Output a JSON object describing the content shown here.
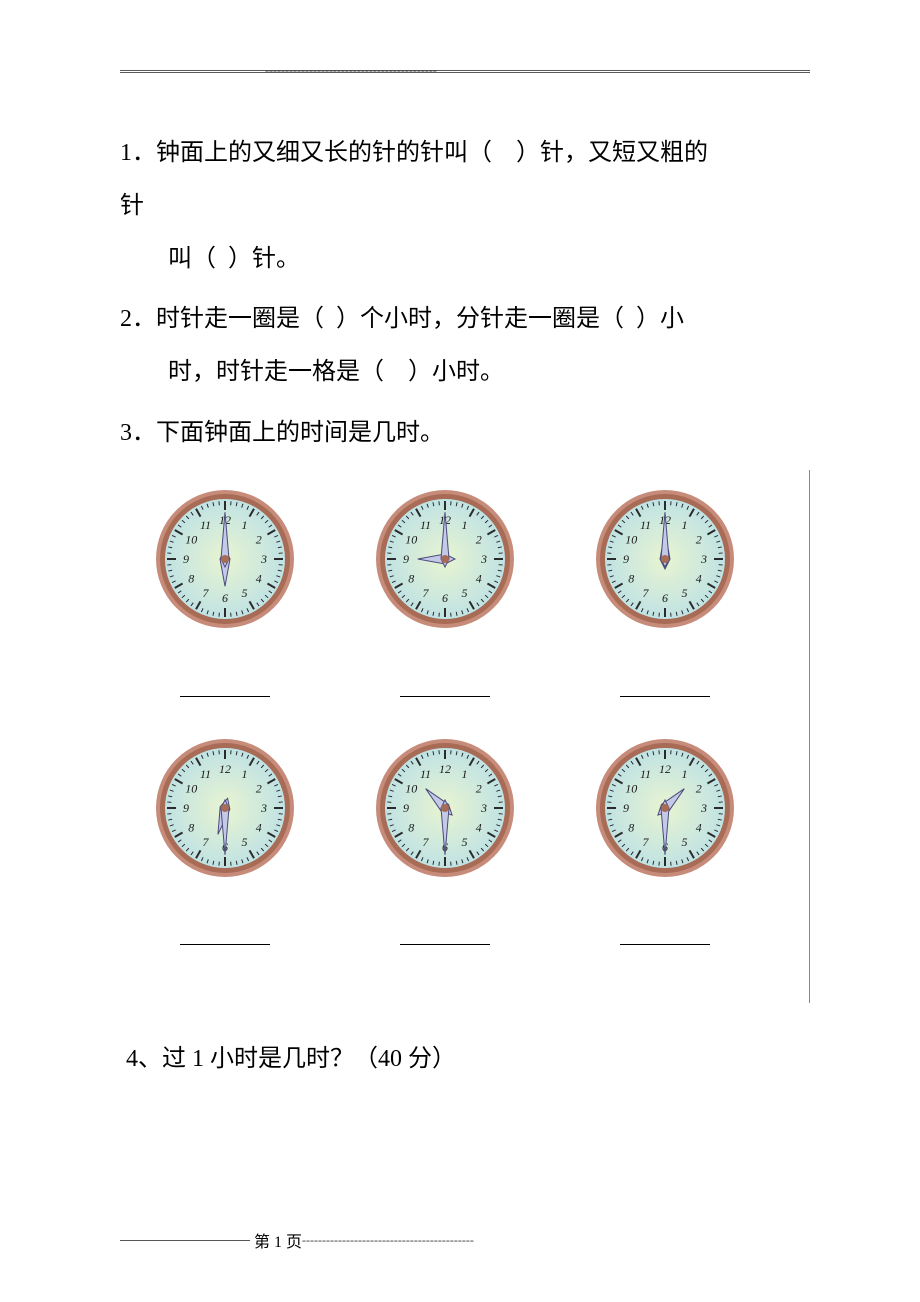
{
  "header": {
    "dash": "-------------------------------------------"
  },
  "q1": {
    "num": "1．",
    "line1_a": "钟面上的又细又长的针的针叫（",
    "line1_b": "）针，又短又粗的",
    "line2": "针",
    "line3_a": "叫（",
    "line3_b": "）针。"
  },
  "q2": {
    "num": "2．",
    "line1_a": "时针走一圈是（",
    "line1_b": "）个小时，分针走一圈是（",
    "line1_c": "）小",
    "line2_a": "时，时针走一格是（",
    "line2_b": "）小时。"
  },
  "q3": {
    "num": "3．",
    "text": "下面钟面上的时间是几时。"
  },
  "q4": {
    "num": "4、",
    "text": "过 1 小时是几时？（40 分）"
  },
  "clocks": {
    "face_fill_inner": "#e8f4d0",
    "face_fill_outer": "#b8dfe8",
    "rim_outer": "#c78b7a",
    "rim_inner": "#a86b55",
    "tick_color": "#2a2a2a",
    "number_color": "#1a1a1a",
    "minute_hand_fill": "#c5c9e8",
    "minute_hand_stroke": "#4a4a7a",
    "hour_hand_fill": "#c5c9e8",
    "hour_hand_stroke": "#4a4a7a",
    "center_color": "#a86b55",
    "radius": 65,
    "items": [
      {
        "hour": 6,
        "minute": 0
      },
      {
        "hour": 9,
        "minute": 0
      },
      {
        "hour": 12,
        "minute": 0
      },
      {
        "hour": 6,
        "minute": 30
      },
      {
        "hour": 10,
        "minute": 30
      },
      {
        "hour": 1,
        "minute": 30
      }
    ]
  },
  "footer": {
    "label": "第 1 页",
    "dash": "-------------------------------------------"
  }
}
